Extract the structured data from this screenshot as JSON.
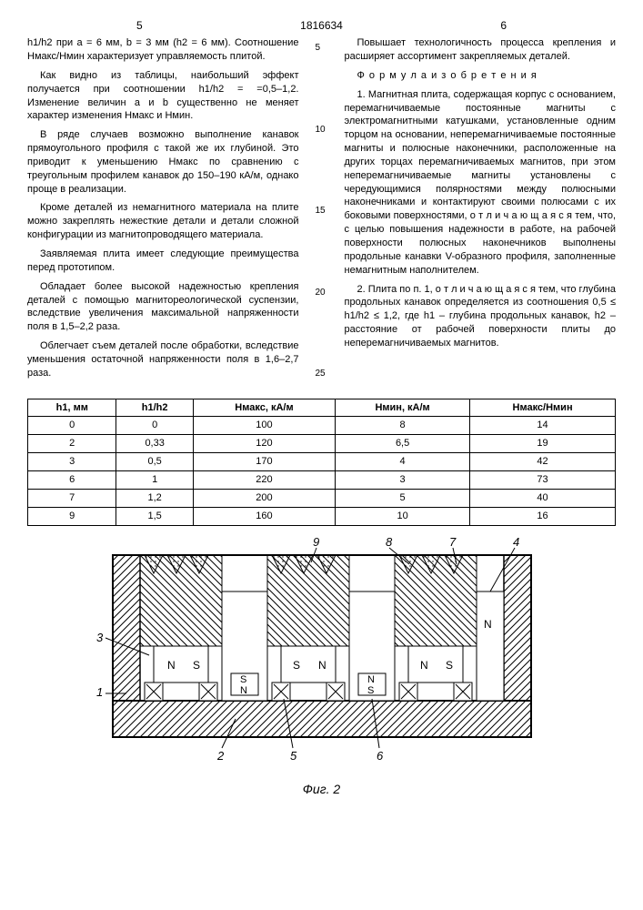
{
  "header": {
    "page_left": "5",
    "doc_number": "1816634",
    "page_right": "6"
  },
  "line_numbers": [
    "5",
    "10",
    "15",
    "20",
    "25"
  ],
  "left_column": {
    "p1": "h1/h2 при a = 6 мм, b = 3 мм (h2 = 6 мм). Соотношение Hмакс/Hмин характеризует управляемость плитой.",
    "p2": "Как видно из таблицы, наибольший эффект получается при соотношении h1/h2 = =0,5–1,2. Изменение величин a и b существенно не меняет характер изменения Hмакс и Hмин.",
    "p3": "В ряде случаев возможно выполнение канавок прямоугольного профиля с такой же их глубиной. Это приводит к уменьшению Hмакс по сравнению с треугольным профилем канавок до 150–190 кА/м, однако проще в реализации.",
    "p4": "Кроме деталей из немагнитного материала на плите можно закреплять нежесткие детали и детали сложной конфигурации из магнитопроводящего материала.",
    "p5": "Заявляемая плита имеет следующие преимущества перед прототипом.",
    "p6": "Обладает более высокой надежностью крепления деталей с помощью магнитореологической суспензии, вследствие увеличения максимальной напряженности поля в 1,5–2,2 раза.",
    "p7": "Облегчает съем деталей после обработки, вследствие уменьшения остаточной напряженности поля в 1,6–2,7 раза."
  },
  "right_column": {
    "p1": "Повышает технологичность процесса крепления и расширяет ассортимент закрепляемых деталей.",
    "heading": "Ф о р м у л а  и з о б р е т е н и я",
    "p2": "1. Магнитная плита, содержащая корпус с основанием, перемагничиваемые постоянные магниты с электромагнитными катушками, установленные одним торцом на основании, неперемагничиваемые постоянные магниты и полюсные наконечники, расположенные на других торцах перемагничиваемых магнитов, при этом неперемагничиваемые магниты установлены с чередующимися полярностями между полюсными наконечниками и контактируют своими полюсами с их боковыми поверхностями, о т л и ч а ю щ а я с я тем, что, с целью повышения надежности в работе, на рабочей поверхности полюсных наконечников выполнены продольные канавки V-образного профиля, заполненные немагнитным наполнителем.",
    "p3": "2. Плита по п. 1, о т л и ч а ю щ а я с я тем, что глубина продольных канавок определяется из соотношения 0,5 ≤ h1/h2 ≤ 1,2, где h1 – глубина продольных канавок, h2 – расстояние от рабочей поверхности плиты до неперемагничиваемых магнитов."
  },
  "table": {
    "headers": [
      "h1, мм",
      "h1/h2",
      "Hмакс, кА/м",
      "Hмин, кА/м",
      "Hмакс/Hмин"
    ],
    "rows": [
      [
        "0",
        "0",
        "100",
        "8",
        "14"
      ],
      [
        "2",
        "0,33",
        "120",
        "6,5",
        "19"
      ],
      [
        "3",
        "0,5",
        "170",
        "4",
        "42"
      ],
      [
        "6",
        "1",
        "220",
        "3",
        "73"
      ],
      [
        "7",
        "1,2",
        "200",
        "5",
        "40"
      ],
      [
        "9",
        "1,5",
        "160",
        "10",
        "16"
      ]
    ]
  },
  "figure": {
    "caption": "Фиг. 2",
    "labels": {
      "l1": "1",
      "l2": "2",
      "l3": "3",
      "l4": "4",
      "l5": "5",
      "l6": "6",
      "l7": "7",
      "l8": "8",
      "l9": "9"
    },
    "magnet_labels": [
      "N",
      "S",
      "S",
      "N",
      "N",
      "S",
      "S",
      "N",
      "N"
    ],
    "colors": {
      "outline": "#000000",
      "hatch": "#000000",
      "coil": "#000000",
      "background": "#ffffff"
    }
  }
}
